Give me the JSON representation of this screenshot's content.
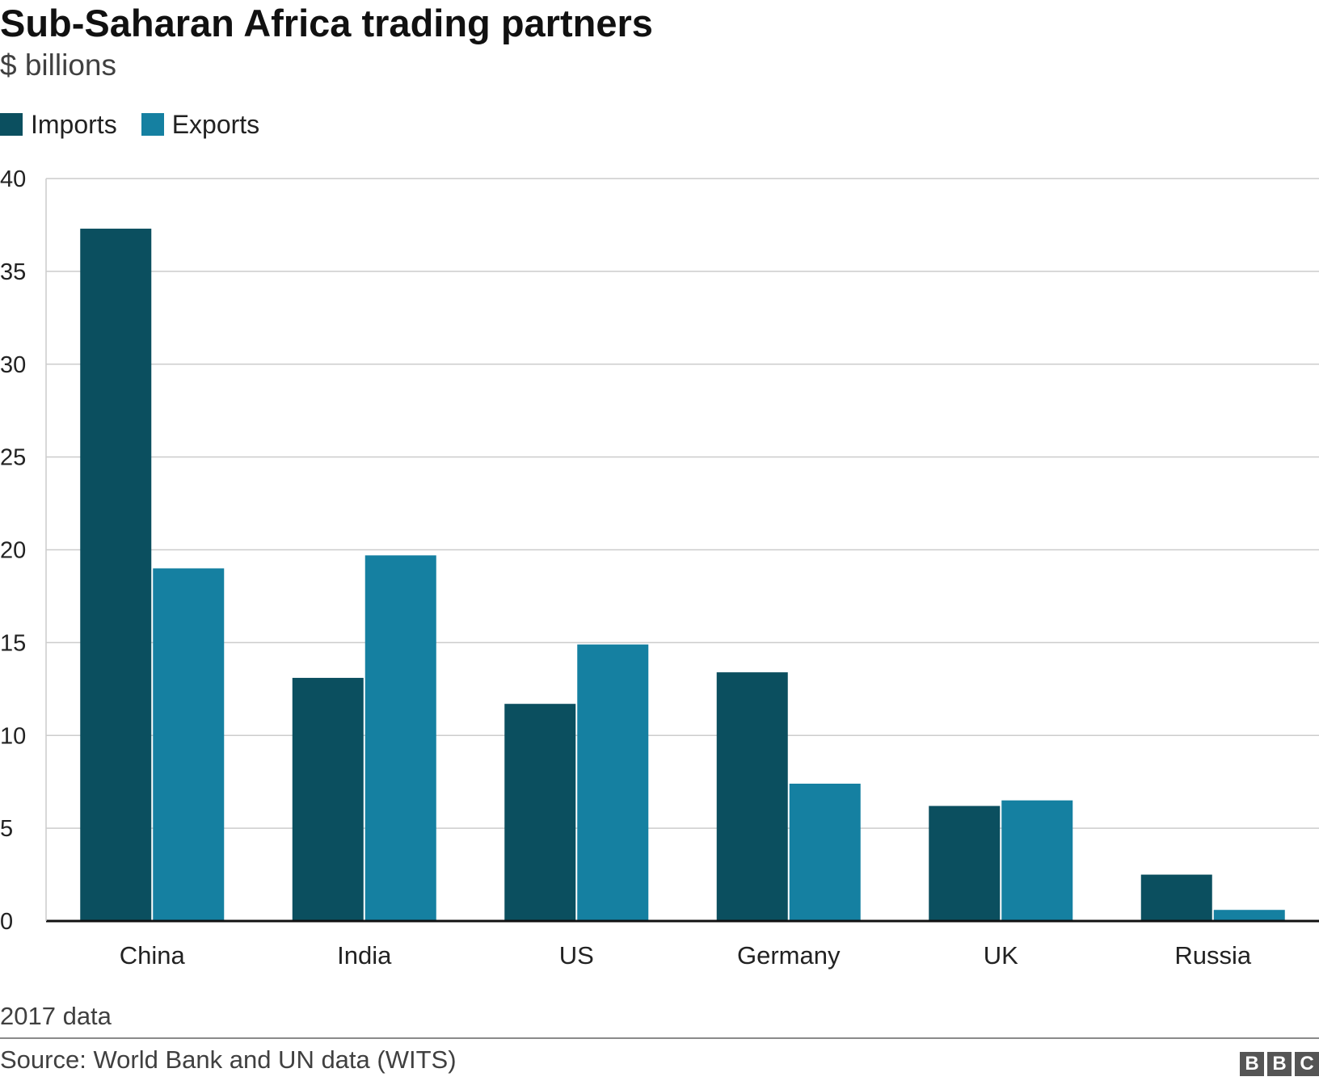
{
  "header": {
    "title": "Sub-Saharan Africa trading partners",
    "subtitle": "$ billions"
  },
  "legend": {
    "items": [
      {
        "label": "Imports",
        "color": "#0b4f5f"
      },
      {
        "label": "Exports",
        "color": "#1580a1"
      }
    ]
  },
  "footer": {
    "note": "2017 data",
    "source": "Source: World Bank and UN data (WITS)",
    "logo": [
      "B",
      "B",
      "C"
    ]
  },
  "chart_data": {
    "type": "bar",
    "categories": [
      "China",
      "India",
      "US",
      "Germany",
      "UK",
      "Russia"
    ],
    "series": [
      {
        "name": "Imports",
        "color": "#0b4f5f",
        "values": [
          37.3,
          13.1,
          11.7,
          13.4,
          6.2,
          2.5
        ]
      },
      {
        "name": "Exports",
        "color": "#1580a1",
        "values": [
          19.0,
          19.7,
          14.9,
          7.4,
          6.5,
          0.6
        ]
      }
    ],
    "title": "Sub-Saharan Africa trading partners",
    "subtitle": "$ billions",
    "xlabel": "",
    "ylabel": "",
    "ylim": [
      0,
      40
    ],
    "yticks": [
      0,
      5,
      10,
      15,
      20,
      25,
      30,
      35,
      40
    ],
    "grid": true,
    "legend_position": "top-left"
  }
}
